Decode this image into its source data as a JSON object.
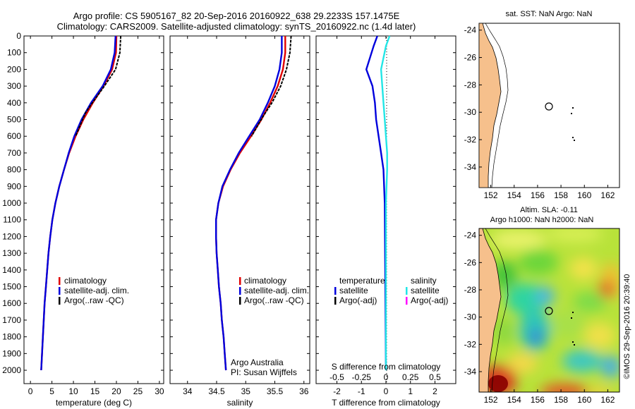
{
  "header": {
    "line1": "Argo profile: CS 5905167_82 20-Sep-2016 20160922_638 29.2233S 157.1475E",
    "line2": "Climatology: CARS2009. Satellite-adjusted climatology: synTS_20160922.nc (1.4d later)"
  },
  "credit": "©IMOS 29-Sep-2016 20:39:40",
  "colors": {
    "climatology": "#e00000",
    "satellite": "#0000dd",
    "argo": "#000000",
    "salinity_sat": "#22e6e6",
    "salinity_argo": "#ff00ff",
    "land": "#f6c08c"
  },
  "chart_data": [
    {
      "type": "line",
      "xlabel": "temperature (deg C)",
      "ylim": [
        2080,
        0
      ],
      "xlim": [
        -1.5,
        31
      ],
      "yticks": [
        "0",
        "100",
        "200",
        "300",
        "400",
        "500",
        "600",
        "700",
        "800",
        "900",
        "1000",
        "1100",
        "1200",
        "1300",
        "1400",
        "1500",
        "1600",
        "1700",
        "1800",
        "1900",
        "2000"
      ],
      "xticks": [
        "0",
        "5",
        "10",
        "15",
        "20",
        "25",
        "30"
      ],
      "legend": [
        "climatology",
        "satellite-adj. clim.",
        "Argo(..raw -QC)"
      ],
      "series": [
        {
          "name": "climatology",
          "x": [
            20.0,
            19.9,
            19.0,
            17.0,
            14.5,
            12.3,
            10.5,
            9.0,
            7.8,
            6.7,
            5.8,
            5.1,
            4.6,
            4.2,
            3.9,
            3.6,
            3.3,
            3.1,
            2.9,
            2.7,
            2.5
          ],
          "y": [
            0,
            100,
            200,
            300,
            400,
            500,
            600,
            700,
            800,
            900,
            1000,
            1100,
            1200,
            1300,
            1400,
            1500,
            1600,
            1700,
            1800,
            1900,
            2000
          ]
        },
        {
          "name": "satellite-adj. clim.",
          "x": [
            19.8,
            19.6,
            18.7,
            16.8,
            14.1,
            11.9,
            10.2,
            8.9,
            7.8,
            6.7,
            5.8,
            5.1,
            4.6,
            4.2,
            3.9,
            3.6,
            3.3,
            3.1,
            2.9,
            2.7,
            2.5
          ],
          "y": [
            0,
            100,
            200,
            300,
            400,
            500,
            600,
            700,
            800,
            900,
            1000,
            1100,
            1200,
            1300,
            1400,
            1500,
            1600,
            1700,
            1800,
            1900,
            2000
          ]
        },
        {
          "name": "Argo(..raw -QC)",
          "x": [
            21.0,
            20.8,
            19.8,
            17.2,
            14.4,
            12.8,
            10.5
          ],
          "y": [
            0,
            100,
            200,
            300,
            400,
            460,
            600
          ]
        }
      ]
    },
    {
      "type": "line",
      "xlabel": "salinity",
      "ylim": [
        2080,
        0
      ],
      "xlim": [
        33.7,
        36.1
      ],
      "xticks": [
        "34",
        "34.5",
        "35",
        "35.5",
        "36"
      ],
      "legend": [
        "climatology",
        "satellite-adj. clim.",
        "Argo(..raw -QC)"
      ],
      "annotation": [
        "Argo Australia",
        "PI: Susan Wijffels"
      ],
      "series": [
        {
          "name": "climatology",
          "x": [
            35.68,
            35.68,
            35.64,
            35.55,
            35.42,
            35.27,
            35.09,
            34.9,
            34.74,
            34.61,
            34.53,
            34.49,
            34.49,
            34.5,
            34.52,
            34.54,
            34.57,
            34.59,
            34.62,
            34.64,
            34.66
          ],
          "y": [
            0,
            100,
            200,
            300,
            400,
            500,
            600,
            700,
            800,
            900,
            1000,
            1100,
            1200,
            1300,
            1400,
            1500,
            1600,
            1700,
            1800,
            1900,
            2000
          ]
        },
        {
          "name": "satellite-adj. clim.",
          "x": [
            35.62,
            35.62,
            35.58,
            35.5,
            35.38,
            35.24,
            35.06,
            34.88,
            34.73,
            34.6,
            34.53,
            34.49,
            34.49,
            34.5,
            34.52,
            34.54,
            34.57,
            34.59,
            34.62,
            34.64,
            34.66
          ],
          "y": [
            0,
            100,
            200,
            300,
            400,
            500,
            600,
            700,
            800,
            900,
            1000,
            1100,
            1200,
            1300,
            1400,
            1500,
            1600,
            1700,
            1800,
            1900,
            2000
          ]
        },
        {
          "name": "Argo(..raw -QC)",
          "x": [
            35.78,
            35.76,
            35.7,
            35.6,
            35.45,
            35.3,
            35.1
          ],
          "y": [
            0,
            100,
            200,
            300,
            400,
            480,
            600
          ]
        }
      ]
    },
    {
      "type": "line",
      "xlabel": "T difference from climatology",
      "xlabel_top": "S difference from climatology",
      "ylim": [
        2080,
        0
      ],
      "xlim": [
        -2.85,
        2.85
      ],
      "xticks": [
        "-2",
        "-1",
        "0",
        "1",
        "2"
      ],
      "xticks_top": [
        "-0.5",
        "-0.25",
        "0",
        "0.25",
        "0.5"
      ],
      "legend": {
        "temperature": [
          "satellite",
          "Argo(-adj)"
        ],
        "salinity": [
          "satellite",
          "Argo(-adj)"
        ]
      },
      "legend_titles": [
        "temperature",
        "salinity"
      ],
      "series": [
        {
          "name": "temperature satellite",
          "x": [
            -0.35,
            -0.5,
            -0.8,
            -0.55,
            -0.45,
            -0.4,
            -0.3,
            -0.2,
            -0.1,
            -0.05,
            0
          ],
          "y": [
            0,
            60,
            200,
            300,
            400,
            500,
            600,
            700,
            800,
            1000,
            2000
          ]
        },
        {
          "name": "salinity satellite",
          "x": [
            0.15,
            0.0,
            -0.2,
            -0.15,
            -0.1,
            -0.05,
            0.0,
            0.05,
            0.05,
            0.0,
            0.0
          ],
          "y": [
            0,
            60,
            200,
            300,
            400,
            500,
            600,
            700,
            800,
            1000,
            2000
          ]
        }
      ]
    },
    {
      "type": "scatter",
      "title": "sat. SST: NaN Argo: NaN",
      "xlim": [
        151,
        163
      ],
      "ylim": [
        -35.5,
        -23.5
      ],
      "xticks": [
        "152",
        "154",
        "156",
        "158",
        "160",
        "162"
      ],
      "yticks": [
        "-24",
        "-26",
        "-28",
        "-30",
        "-32",
        "-34"
      ],
      "points": [
        {
          "lon": 157.15,
          "lat": -29.22
        }
      ]
    },
    {
      "type": "heatmap",
      "title": "Altim. SLA: -0.11",
      "subtitle": "Argo h1000: NaN h2000: NaN",
      "xlim": [
        151,
        163
      ],
      "ylim": [
        -35.5,
        -23.5
      ],
      "xticks": [
        "152",
        "154",
        "156",
        "158",
        "160",
        "162"
      ],
      "yticks": [
        "-24",
        "-26",
        "-28",
        "-30",
        "-32",
        "-34"
      ],
      "points": [
        {
          "lon": 157.15,
          "lat": -29.22
        }
      ]
    }
  ]
}
